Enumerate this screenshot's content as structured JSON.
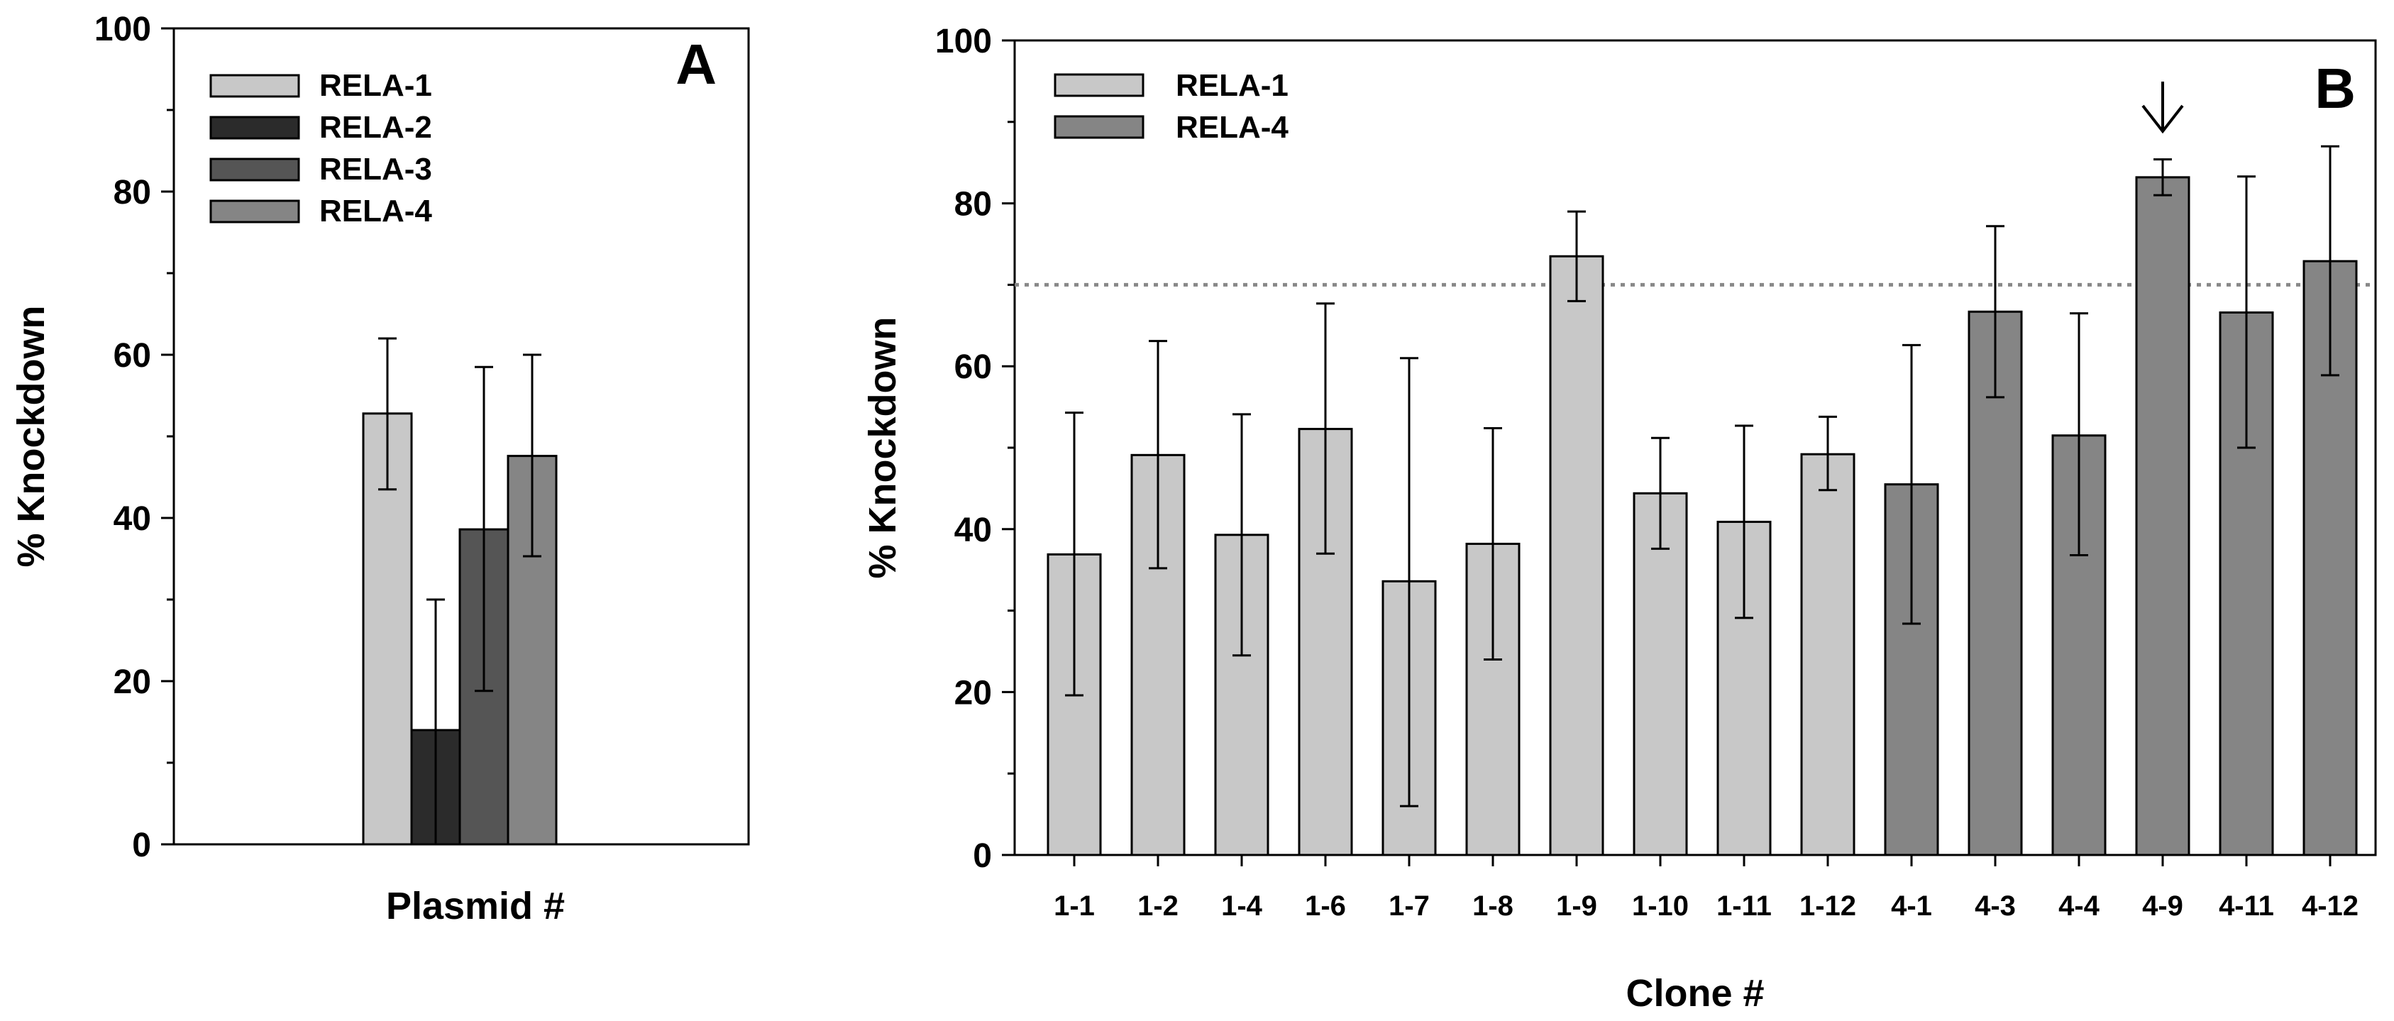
{
  "chart_data": [
    {
      "type": "bar",
      "panel_label": "A",
      "xlabel": "Plasmid #",
      "ylabel": "% Knockdown",
      "ylim": [
        0,
        100
      ],
      "yticks": [
        0,
        20,
        40,
        60,
        80,
        100
      ],
      "legend_placement": "top-left",
      "series": [
        {
          "name": "RELA-1",
          "color": "#c8c8c8",
          "value": 52.8,
          "err_low": 43.5,
          "err_high": 62.0
        },
        {
          "name": "RELA-2",
          "color": "#2b2b2b",
          "value": 14.0,
          "err_low": 0,
          "err_high": 30.0
        },
        {
          "name": "RELA-3",
          "color": "#555555",
          "value": 38.6,
          "err_low": 18.8,
          "err_high": 58.5
        },
        {
          "name": "RELA-4",
          "color": "#858585",
          "value": 47.6,
          "err_low": 35.3,
          "err_high": 60.0
        }
      ]
    },
    {
      "type": "bar",
      "panel_label": "B",
      "xlabel": "Clone #",
      "ylabel": "% Knockdown",
      "ylim": [
        0,
        100
      ],
      "yticks": [
        0,
        20,
        40,
        60,
        80,
        100
      ],
      "threshold_line": 70,
      "arrow_category": "4-9",
      "legend_placement": "top-left",
      "legend": [
        {
          "name": "RELA-1",
          "color": "#c8c8c8"
        },
        {
          "name": "RELA-4",
          "color": "#858585"
        }
      ],
      "categories": [
        "1-1",
        "1-2",
        "1-4",
        "1-6",
        "1-7",
        "1-8",
        "1-9",
        "1-10",
        "1-11",
        "1-12",
        "4-1",
        "4-3",
        "4-4",
        "4-9",
        "4-11",
        "4-12"
      ],
      "values": [
        36.9,
        49.1,
        39.3,
        52.3,
        33.6,
        38.2,
        73.5,
        44.4,
        40.9,
        49.2,
        45.5,
        66.7,
        51.5,
        83.2,
        66.6,
        72.9
      ],
      "err_low": [
        19.6,
        35.2,
        24.5,
        37.0,
        6.0,
        24.0,
        68.0,
        37.6,
        29.1,
        44.8,
        28.4,
        56.2,
        36.8,
        81.0,
        50.0,
        58.9
      ],
      "err_high": [
        54.3,
        63.1,
        54.1,
        67.7,
        61.0,
        52.4,
        79.0,
        51.2,
        52.7,
        53.8,
        62.6,
        77.2,
        66.5,
        85.4,
        83.3,
        87.0
      ],
      "series_of_category": [
        0,
        0,
        0,
        0,
        0,
        0,
        0,
        0,
        0,
        0,
        1,
        1,
        1,
        1,
        1,
        1
      ]
    }
  ]
}
